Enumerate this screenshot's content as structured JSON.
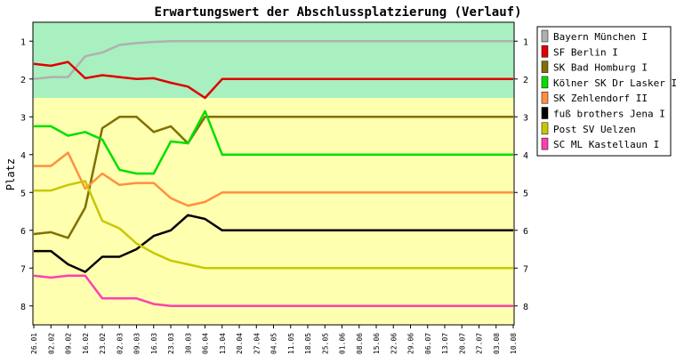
{
  "chart_data": {
    "type": "line",
    "title": "Erwartungswert der Abschlussplatzierung (Verlauf)",
    "ylabel": "Platz",
    "xlabel": "",
    "ylim": [
      8.5,
      0.5
    ],
    "y_ticks": [
      "1",
      "2",
      "3",
      "4",
      "5",
      "6",
      "7",
      "8"
    ],
    "categories": [
      "26.01",
      "02.02",
      "09.02",
      "16.02",
      "23.02",
      "02.03",
      "09.03",
      "16.03",
      "23.03",
      "30.03",
      "06.04",
      "13.04",
      "20.04",
      "27.04",
      "04.05",
      "11.05",
      "18.05",
      "25.05",
      "01.06",
      "08.06",
      "15.06",
      "22.06",
      "29.06",
      "06.07",
      "13.07",
      "20.07",
      "27.07",
      "03.08",
      "10.08"
    ],
    "bands": [
      {
        "from": 0.5,
        "to": 2.5,
        "color": "#a8f0c0"
      },
      {
        "from": 2.5,
        "to": 8.5,
        "color": "#ffffb0"
      }
    ],
    "grid": false,
    "legend_position": "right",
    "series": [
      {
        "name": "Bayern München I",
        "color": "#b0b0b0",
        "values": [
          2.0,
          1.95,
          1.95,
          1.4,
          1.3,
          1.1,
          1.05,
          1.02,
          1.0,
          1.0,
          1.0,
          1.0,
          1.0,
          1.0,
          1.0,
          1.0,
          1.0,
          1.0,
          1.0,
          1.0,
          1.0,
          1.0,
          1.0,
          1.0,
          1.0,
          1.0,
          1.0,
          1.0,
          1.0
        ]
      },
      {
        "name": "SF Berlin I",
        "color": "#e00000",
        "values": [
          1.6,
          1.65,
          1.55,
          1.98,
          1.9,
          1.95,
          2.0,
          1.98,
          2.1,
          2.2,
          2.5,
          2.0,
          2.0,
          2.0,
          2.0,
          2.0,
          2.0,
          2.0,
          2.0,
          2.0,
          2.0,
          2.0,
          2.0,
          2.0,
          2.0,
          2.0,
          2.0,
          2.0,
          2.0
        ]
      },
      {
        "name": "SK Bad Homburg I",
        "color": "#807000",
        "values": [
          6.1,
          6.05,
          6.2,
          5.4,
          3.3,
          3.0,
          3.0,
          3.4,
          3.25,
          3.7,
          3.0,
          3.0,
          3.0,
          3.0,
          3.0,
          3.0,
          3.0,
          3.0,
          3.0,
          3.0,
          3.0,
          3.0,
          3.0,
          3.0,
          3.0,
          3.0,
          3.0,
          3.0,
          3.0
        ]
      },
      {
        "name": "Kölner SK Dr Lasker I",
        "color": "#00e000",
        "values": [
          3.25,
          3.25,
          3.5,
          3.4,
          3.6,
          4.4,
          4.5,
          4.5,
          3.65,
          3.7,
          2.85,
          4.0,
          4.0,
          4.0,
          4.0,
          4.0,
          4.0,
          4.0,
          4.0,
          4.0,
          4.0,
          4.0,
          4.0,
          4.0,
          4.0,
          4.0,
          4.0,
          4.0,
          4.0
        ]
      },
      {
        "name": "SK Zehlendorf II",
        "color": "#ff9040",
        "values": [
          4.3,
          4.3,
          3.95,
          4.9,
          4.5,
          4.8,
          4.75,
          4.75,
          5.15,
          5.35,
          5.25,
          5.0,
          5.0,
          5.0,
          5.0,
          5.0,
          5.0,
          5.0,
          5.0,
          5.0,
          5.0,
          5.0,
          5.0,
          5.0,
          5.0,
          5.0,
          5.0,
          5.0,
          5.0
        ]
      },
      {
        "name": "fuß brothers Jena I",
        "color": "#000000",
        "values": [
          6.55,
          6.55,
          6.9,
          7.1,
          6.7,
          6.7,
          6.5,
          6.15,
          6.0,
          5.6,
          5.7,
          6.0,
          6.0,
          6.0,
          6.0,
          6.0,
          6.0,
          6.0,
          6.0,
          6.0,
          6.0,
          6.0,
          6.0,
          6.0,
          6.0,
          6.0,
          6.0,
          6.0,
          6.0
        ]
      },
      {
        "name": "Post SV Uelzen",
        "color": "#c8c800",
        "values": [
          4.95,
          4.95,
          4.8,
          4.7,
          5.75,
          5.95,
          6.35,
          6.6,
          6.8,
          6.9,
          7.0,
          7.0,
          7.0,
          7.0,
          7.0,
          7.0,
          7.0,
          7.0,
          7.0,
          7.0,
          7.0,
          7.0,
          7.0,
          7.0,
          7.0,
          7.0,
          7.0,
          7.0,
          7.0
        ]
      },
      {
        "name": "SC ML Kastellaun I",
        "color": "#ff40b0",
        "values": [
          7.2,
          7.25,
          7.2,
          7.2,
          7.8,
          7.8,
          7.8,
          7.95,
          8.0,
          8.0,
          8.0,
          8.0,
          8.0,
          8.0,
          8.0,
          8.0,
          8.0,
          8.0,
          8.0,
          8.0,
          8.0,
          8.0,
          8.0,
          8.0,
          8.0,
          8.0,
          8.0,
          8.0,
          8.0
        ]
      }
    ]
  }
}
